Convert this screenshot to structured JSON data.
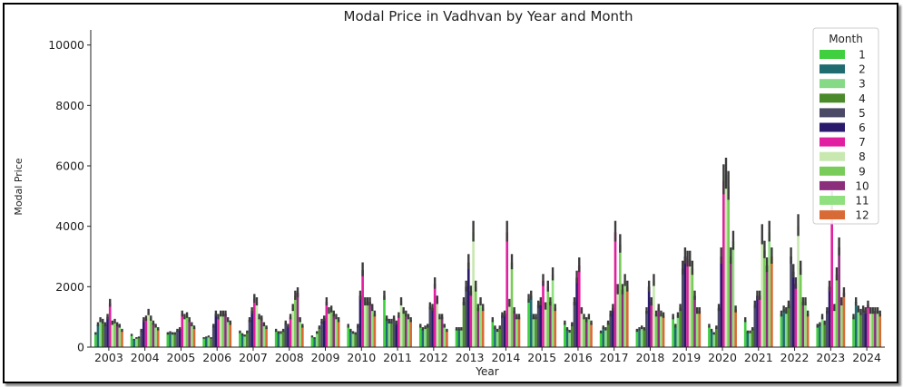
{
  "chart_data": {
    "type": "bar",
    "title": "Modal Price in Vadhvan by Year and Month",
    "xlabel": "Year",
    "ylabel": "Modal Price",
    "ylim": [
      0,
      10500
    ],
    "yticks": [
      0,
      2000,
      4000,
      6000,
      8000,
      10000
    ],
    "categories": [
      "2003",
      "2004",
      "2005",
      "2006",
      "2007",
      "2008",
      "2009",
      "2010",
      "2011",
      "2012",
      "2013",
      "2014",
      "2015",
      "2016",
      "2017",
      "2018",
      "2019",
      "2020",
      "2021",
      "2022",
      "2023",
      "2024"
    ],
    "legend": {
      "title": "Month",
      "position": "top-right"
    },
    "grid": false,
    "series": [
      {
        "name": "1",
        "color": "#3fcf3f",
        "values": [
          450,
          400,
          450,
          300,
          500,
          550,
          350,
          700,
          1700,
          700,
          600,
          900,
          1600,
          800,
          500,
          550,
          1000,
          700,
          900,
          1100,
          700,
          1000
        ]
      },
      {
        "name": "2",
        "color": "#1f6b70",
        "values": [
          750,
          250,
          480,
          320,
          420,
          480,
          300,
          550,
          950,
          600,
          600,
          650,
          1700,
          600,
          650,
          600,
          700,
          550,
          500,
          1250,
          750,
          1500
        ]
      },
      {
        "name": "3",
        "color": "#86d986",
        "values": [
          900,
          300,
          450,
          350,
          380,
          480,
          480,
          480,
          850,
          650,
          600,
          550,
          1000,
          520,
          600,
          650,
          1050,
          450,
          500,
          1200,
          1000,
          1250
        ]
      },
      {
        "name": "4",
        "color": "#4a8a2a",
        "values": [
          850,
          320,
          450,
          300,
          500,
          550,
          650,
          450,
          850,
          700,
          1500,
          650,
          1000,
          750,
          800,
          600,
          1300,
          650,
          600,
          1400,
          800,
          1150
        ]
      },
      {
        "name": "5",
        "color": "#4a4a66",
        "values": [
          750,
          550,
          550,
          700,
          900,
          800,
          850,
          700,
          950,
          1350,
          2000,
          1050,
          1400,
          1500,
          1100,
          1200,
          2600,
          1300,
          1400,
          3000,
          1200,
          1250
        ]
      },
      {
        "name": "6",
        "color": "#2a1a6b",
        "values": [
          1000,
          900,
          600,
          1100,
          1200,
          700,
          950,
          1700,
          800,
          1300,
          2800,
          1100,
          1500,
          2300,
          1300,
          2000,
          3000,
          3000,
          1700,
          2500,
          2000,
          1200
        ]
      },
      {
        "name": "7",
        "color": "#e020a0",
        "values": [
          1450,
          950,
          1100,
          1000,
          1600,
          1000,
          1500,
          2550,
          1050,
          2100,
          1850,
          3800,
          2200,
          2700,
          3800,
          1500,
          2900,
          5500,
          1700,
          2100,
          4700,
          1400
        ]
      },
      {
        "name": "8",
        "color": "#c8e8b0",
        "values": [
          800,
          1150,
          1000,
          1100,
          1500,
          1300,
          1200,
          1500,
          1500,
          1550,
          3800,
          1450,
          1350,
          1200,
          1900,
          2200,
          2900,
          5700,
          3700,
          4000,
          1300,
          1200
        ]
      },
      {
        "name": "9",
        "color": "#7acc5a",
        "values": [
          850,
          950,
          1050,
          1100,
          1000,
          1700,
          1250,
          1500,
          1200,
          1000,
          2000,
          2800,
          2000,
          1000,
          3400,
          1100,
          2600,
          5300,
          3200,
          2600,
          2400,
          1200
        ]
      },
      {
        "name": "10",
        "color": "#8b2f7d",
        "values": [
          750,
          800,
          900,
          1100,
          950,
          1800,
          1100,
          1500,
          1100,
          1000,
          1300,
          1200,
          1500,
          900,
          1900,
          1300,
          1700,
          3000,
          2700,
          1500,
          3300,
          1200
        ]
      },
      {
        "name": "11",
        "color": "#90e080",
        "values": [
          700,
          700,
          750,
          900,
          750,
          900,
          1000,
          1300,
          1000,
          700,
          1500,
          1000,
          2400,
          1000,
          2200,
          1100,
          1200,
          3500,
          3800,
          1500,
          1500,
          1200
        ]
      },
      {
        "name": "12",
        "color": "#d86a35",
        "values": [
          550,
          600,
          650,
          800,
          650,
          700,
          900,
          1100,
          900,
          550,
          1300,
          1000,
          1300,
          800,
          2000,
          1050,
          1200,
          1250,
          3000,
          1100,
          1800,
          1100
        ]
      }
    ]
  }
}
